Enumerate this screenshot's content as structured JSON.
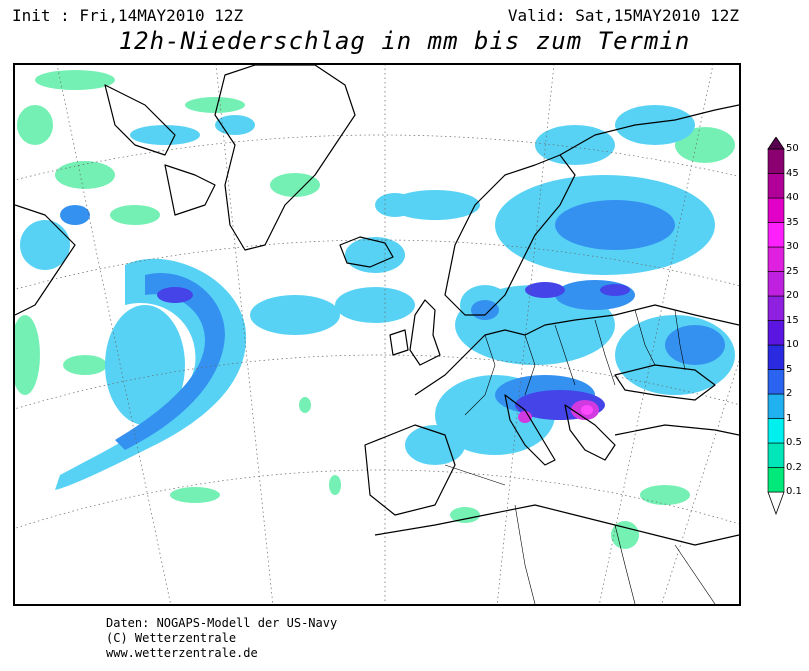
{
  "header": {
    "init": "Init : Fri,14MAY2010 12Z",
    "valid": "Valid: Sat,15MAY2010 12Z",
    "title": "12h-Niederschlag in mm bis zum Termin"
  },
  "legend": {
    "units": "mm",
    "levels": [
      "0.1",
      "0.2",
      "0.5",
      "1",
      "2",
      "5",
      "10",
      "15",
      "20",
      "25",
      "30",
      "35",
      "40",
      "45",
      "50"
    ],
    "colors": [
      "#ffffff",
      "#00e97a",
      "#00e6b8",
      "#00f0f0",
      "#21b0f0",
      "#2a64f0",
      "#2a2ae0",
      "#5a15e0",
      "#9020e0",
      "#c020e0",
      "#e020e0",
      "#ff20ff",
      "#e000c8",
      "#b00098",
      "#8a0070",
      "#5a0050"
    ]
  },
  "map": {
    "region": "North Atlantic and Europe",
    "colors": {
      "land_outline": "#000000",
      "grid": "#666666"
    }
  },
  "footer": {
    "line1": "Daten: NOGAPS-Modell der US-Navy",
    "line2": "(C) Wetterzentrale",
    "line3": "www.wetterzentrale.de"
  }
}
